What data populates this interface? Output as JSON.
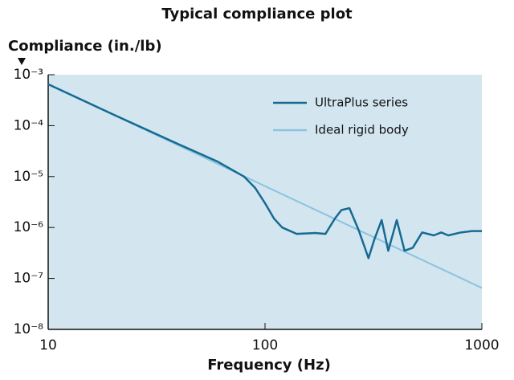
{
  "chart_data": {
    "type": "line",
    "title": "Typical compliance plot",
    "y_label": "Compliance (in./lb)",
    "x_label": "Frequency (Hz)",
    "x_log": true,
    "y_log": true,
    "legend": "upper right",
    "xlim": [
      10,
      1000
    ],
    "xticks": [
      10,
      100,
      1000
    ],
    "ylim": [
      1e-08,
      0.001
    ],
    "yticks": [
      {
        "value": 1e-08,
        "label": "10⁻⁸"
      },
      {
        "value": 1e-07,
        "label": "10⁻⁷"
      },
      {
        "value": 1e-06,
        "label": "10⁻⁶"
      },
      {
        "value": 1e-05,
        "label": "10⁻⁵"
      },
      {
        "value": 0.0001,
        "label": "10⁻⁴"
      },
      {
        "value": 0.001,
        "label": "10⁻³"
      }
    ],
    "background": "#d3e6f0",
    "series": [
      {
        "name": "UltraPlus series",
        "color": "#166a92",
        "x": [
          10,
          20,
          40,
          60,
          80,
          90,
          100,
          110,
          120,
          140,
          170,
          190,
          210,
          225,
          245,
          270,
          300,
          320,
          345,
          370,
          405,
          440,
          480,
          530,
          600,
          650,
          700,
          800,
          900,
          1000
        ],
        "values": [
          0.00065,
          0.000165,
          4.3e-05,
          2e-05,
          1e-05,
          6e-06,
          3e-06,
          1.5e-06,
          1e-06,
          7.5e-07,
          7.8e-07,
          7.5e-07,
          1.5e-06,
          2.2e-06,
          2.4e-06,
          9e-07,
          2.5e-07,
          6e-07,
          1.4e-06,
          3.5e-07,
          1.4e-06,
          3.5e-07,
          4e-07,
          8e-07,
          7e-07,
          8e-07,
          7e-07,
          8e-07,
          8.5e-07,
          8.5e-07
        ]
      },
      {
        "name": "Ideal rigid body",
        "color": "#8cc3df",
        "x": [
          10,
          1000
        ],
        "values": [
          0.00065,
          6.5e-08
        ]
      }
    ]
  }
}
